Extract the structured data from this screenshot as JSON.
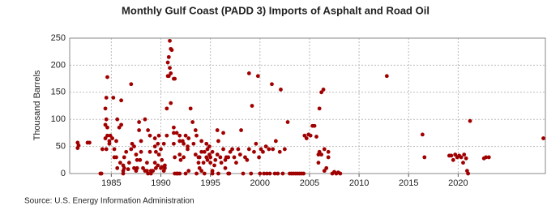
{
  "chart_data": {
    "type": "scatter",
    "title": "Monthly Gulf Coast (PADD 3) Imports of Asphalt and Road Oil",
    "y_label": "Thousand Barrels",
    "source": "Source: U.S. Energy Information Administration",
    "color": "#a00000",
    "grid": true,
    "xlim": [
      1980.8,
      2028.8
    ],
    "ylim": [
      0,
      250
    ],
    "xticks": [
      1985,
      1990,
      1995,
      2000,
      2005,
      2010,
      2015,
      2020
    ],
    "yticks": [
      0,
      50,
      100,
      150,
      200,
      250
    ],
    "x": [
      1981.6,
      1981.6,
      1981.7,
      1982.6,
      1982.8,
      1983.9,
      1984.0,
      1984.1,
      1984.4,
      1984.4,
      1984.4,
      1984.5,
      1984.5,
      1984.5,
      1984.6,
      1984.6,
      1984.6,
      1984.8,
      1984.8,
      1984.9,
      1985.1,
      1985.2,
      1985.3,
      1985.3,
      1985.5,
      1985.5,
      1985.6,
      1985.6,
      1985.8,
      1985.9,
      1986.0,
      1986.0,
      1986.2,
      1986.2,
      1986.2,
      1986.3,
      1986.3,
      1986.5,
      1986.7,
      1986.8,
      1987.0,
      1987.0,
      1987.1,
      1987.3,
      1987.3,
      1987.5,
      1987.5,
      1987.6,
      1987.6,
      1987.8,
      1987.8,
      1987.9,
      1988.0,
      1988.0,
      1988.2,
      1988.4,
      1988.4,
      1988.6,
      1988.6,
      1988.7,
      1988.7,
      1988.9,
      1988.9,
      1989.0,
      1989.0,
      1989.2,
      1989.4,
      1989.4,
      1989.4,
      1989.5,
      1989.5,
      1989.7,
      1989.7,
      1989.8,
      1989.8,
      1990.0,
      1990.0,
      1990.1,
      1990.1,
      1990.3,
      1990.3,
      1990.4,
      1990.4,
      1990.6,
      1990.6,
      1990.7,
      1990.7,
      1990.8,
      1990.8,
      1990.9,
      1990.9,
      1991.0,
      1991.0,
      1991.0,
      1991.1,
      1991.3,
      1991.3,
      1991.3,
      1991.3,
      1991.4,
      1991.4,
      1991.4,
      1991.6,
      1991.6,
      1991.7,
      1991.9,
      1991.9,
      1991.9,
      1991.9,
      1992.0,
      1992.2,
      1992.3,
      1992.3,
      1992.5,
      1992.5,
      1992.7,
      1992.7,
      1992.8,
      1992.8,
      1993.0,
      1993.2,
      1993.3,
      1993.5,
      1993.5,
      1993.6,
      1993.6,
      1993.8,
      1993.8,
      1993.9,
      1993.9,
      1994.1,
      1994.1,
      1994.1,
      1994.3,
      1994.4,
      1994.4,
      1994.6,
      1994.6,
      1994.7,
      1994.7,
      1994.9,
      1994.9,
      1995.0,
      1995.0,
      1995.2,
      1995.2,
      1995.2,
      1995.4,
      1995.5,
      1995.7,
      1995.7,
      1995.8,
      1995.8,
      1996.0,
      1996.1,
      1996.3,
      1996.3,
      1996.5,
      1996.5,
      1996.6,
      1996.8,
      1996.8,
      1996.9,
      1997.0,
      1997.2,
      1997.4,
      1997.6,
      1997.8,
      1998.0,
      1998.1,
      1998.3,
      1998.5,
      1998.7,
      1998.9,
      1998.9,
      1999.1,
      1999.2,
      1999.4,
      1999.6,
      1999.8,
      1999.9,
      2000.0,
      2000.1,
      2000.3,
      2000.4,
      2000.6,
      2000.7,
      2000.9,
      2001.0,
      2001.2,
      2001.3,
      2001.5,
      2001.6,
      2001.8,
      2002.0,
      2002.1,
      2002.3,
      2002.5,
      2002.8,
      2003.0,
      2003.2,
      2003.4,
      2003.6,
      2003.8,
      2004.0,
      2004.2,
      2004.4,
      2004.5,
      2004.7,
      2004.9,
      2005.1,
      2005.3,
      2005.5,
      2005.7,
      2005.9,
      2005.9,
      2006.0,
      2006.0,
      2006.2,
      2006.2,
      2006.4,
      2006.5,
      2006.5,
      2006.7,
      2006.9,
      2006.9,
      2007.3,
      2007.5,
      2007.7,
      2007.9,
      2008.1,
      2012.8,
      2016.4,
      2016.6,
      2019.1,
      2019.3,
      2019.5,
      2019.7,
      2019.9,
      2020.1,
      2020.3,
      2020.5,
      2020.6,
      2020.8,
      2020.9,
      2021.0,
      2021.2,
      2022.6,
      2022.8,
      2023.1,
      2028.6
    ],
    "values": [
      47,
      57,
      52,
      57,
      57,
      0,
      0,
      45,
      65,
      120,
      90,
      45,
      140,
      100,
      178,
      85,
      70,
      60,
      55,
      70,
      65,
      140,
      45,
      30,
      60,
      30,
      10,
      100,
      85,
      20,
      90,
      135,
      15,
      0,
      5,
      10,
      30,
      40,
      8,
      20,
      165,
      45,
      55,
      10,
      50,
      5,
      35,
      10,
      25,
      80,
      95,
      25,
      60,
      40,
      10,
      5,
      100,
      20,
      5,
      0,
      80,
      70,
      40,
      5,
      0,
      5,
      65,
      50,
      20,
      10,
      40,
      15,
      55,
      70,
      35,
      10,
      45,
      12,
      25,
      55,
      5,
      15,
      10,
      70,
      120,
      180,
      205,
      215,
      180,
      245,
      195,
      130,
      230,
      185,
      228,
      55,
      75,
      85,
      175,
      175,
      0,
      30,
      0,
      75,
      0,
      60,
      35,
      0,
      70,
      25,
      60,
      30,
      55,
      0,
      70,
      45,
      50,
      5,
      65,
      120,
      95,
      55,
      80,
      35,
      70,
      0,
      20,
      30,
      10,
      30,
      60,
      40,
      5,
      20,
      0,
      40,
      30,
      55,
      25,
      45,
      50,
      35,
      20,
      30,
      40,
      5,
      0,
      15,
      25,
      80,
      35,
      60,
      0,
      30,
      20,
      75,
      45,
      25,
      10,
      30,
      30,
      0,
      0,
      40,
      45,
      30,
      20,
      45,
      35,
      80,
      0,
      30,
      25,
      185,
      45,
      0,
      125,
      40,
      55,
      180,
      30,
      0,
      45,
      40,
      0,
      50,
      0,
      45,
      0,
      165,
      45,
      0,
      60,
      0,
      40,
      155,
      0,
      45,
      95,
      0,
      0,
      0,
      0,
      0,
      0,
      0,
      0,
      70,
      65,
      72,
      70,
      88,
      88,
      68,
      35,
      20,
      120,
      40,
      150,
      35,
      155,
      45,
      5,
      10,
      40,
      30,
      0,
      3,
      0,
      2,
      0,
      180,
      72,
      30,
      33,
      33,
      25,
      35,
      30,
      33,
      30,
      20,
      35,
      28,
      5,
      0,
      97,
      28,
      30,
      30,
      65
    ]
  }
}
